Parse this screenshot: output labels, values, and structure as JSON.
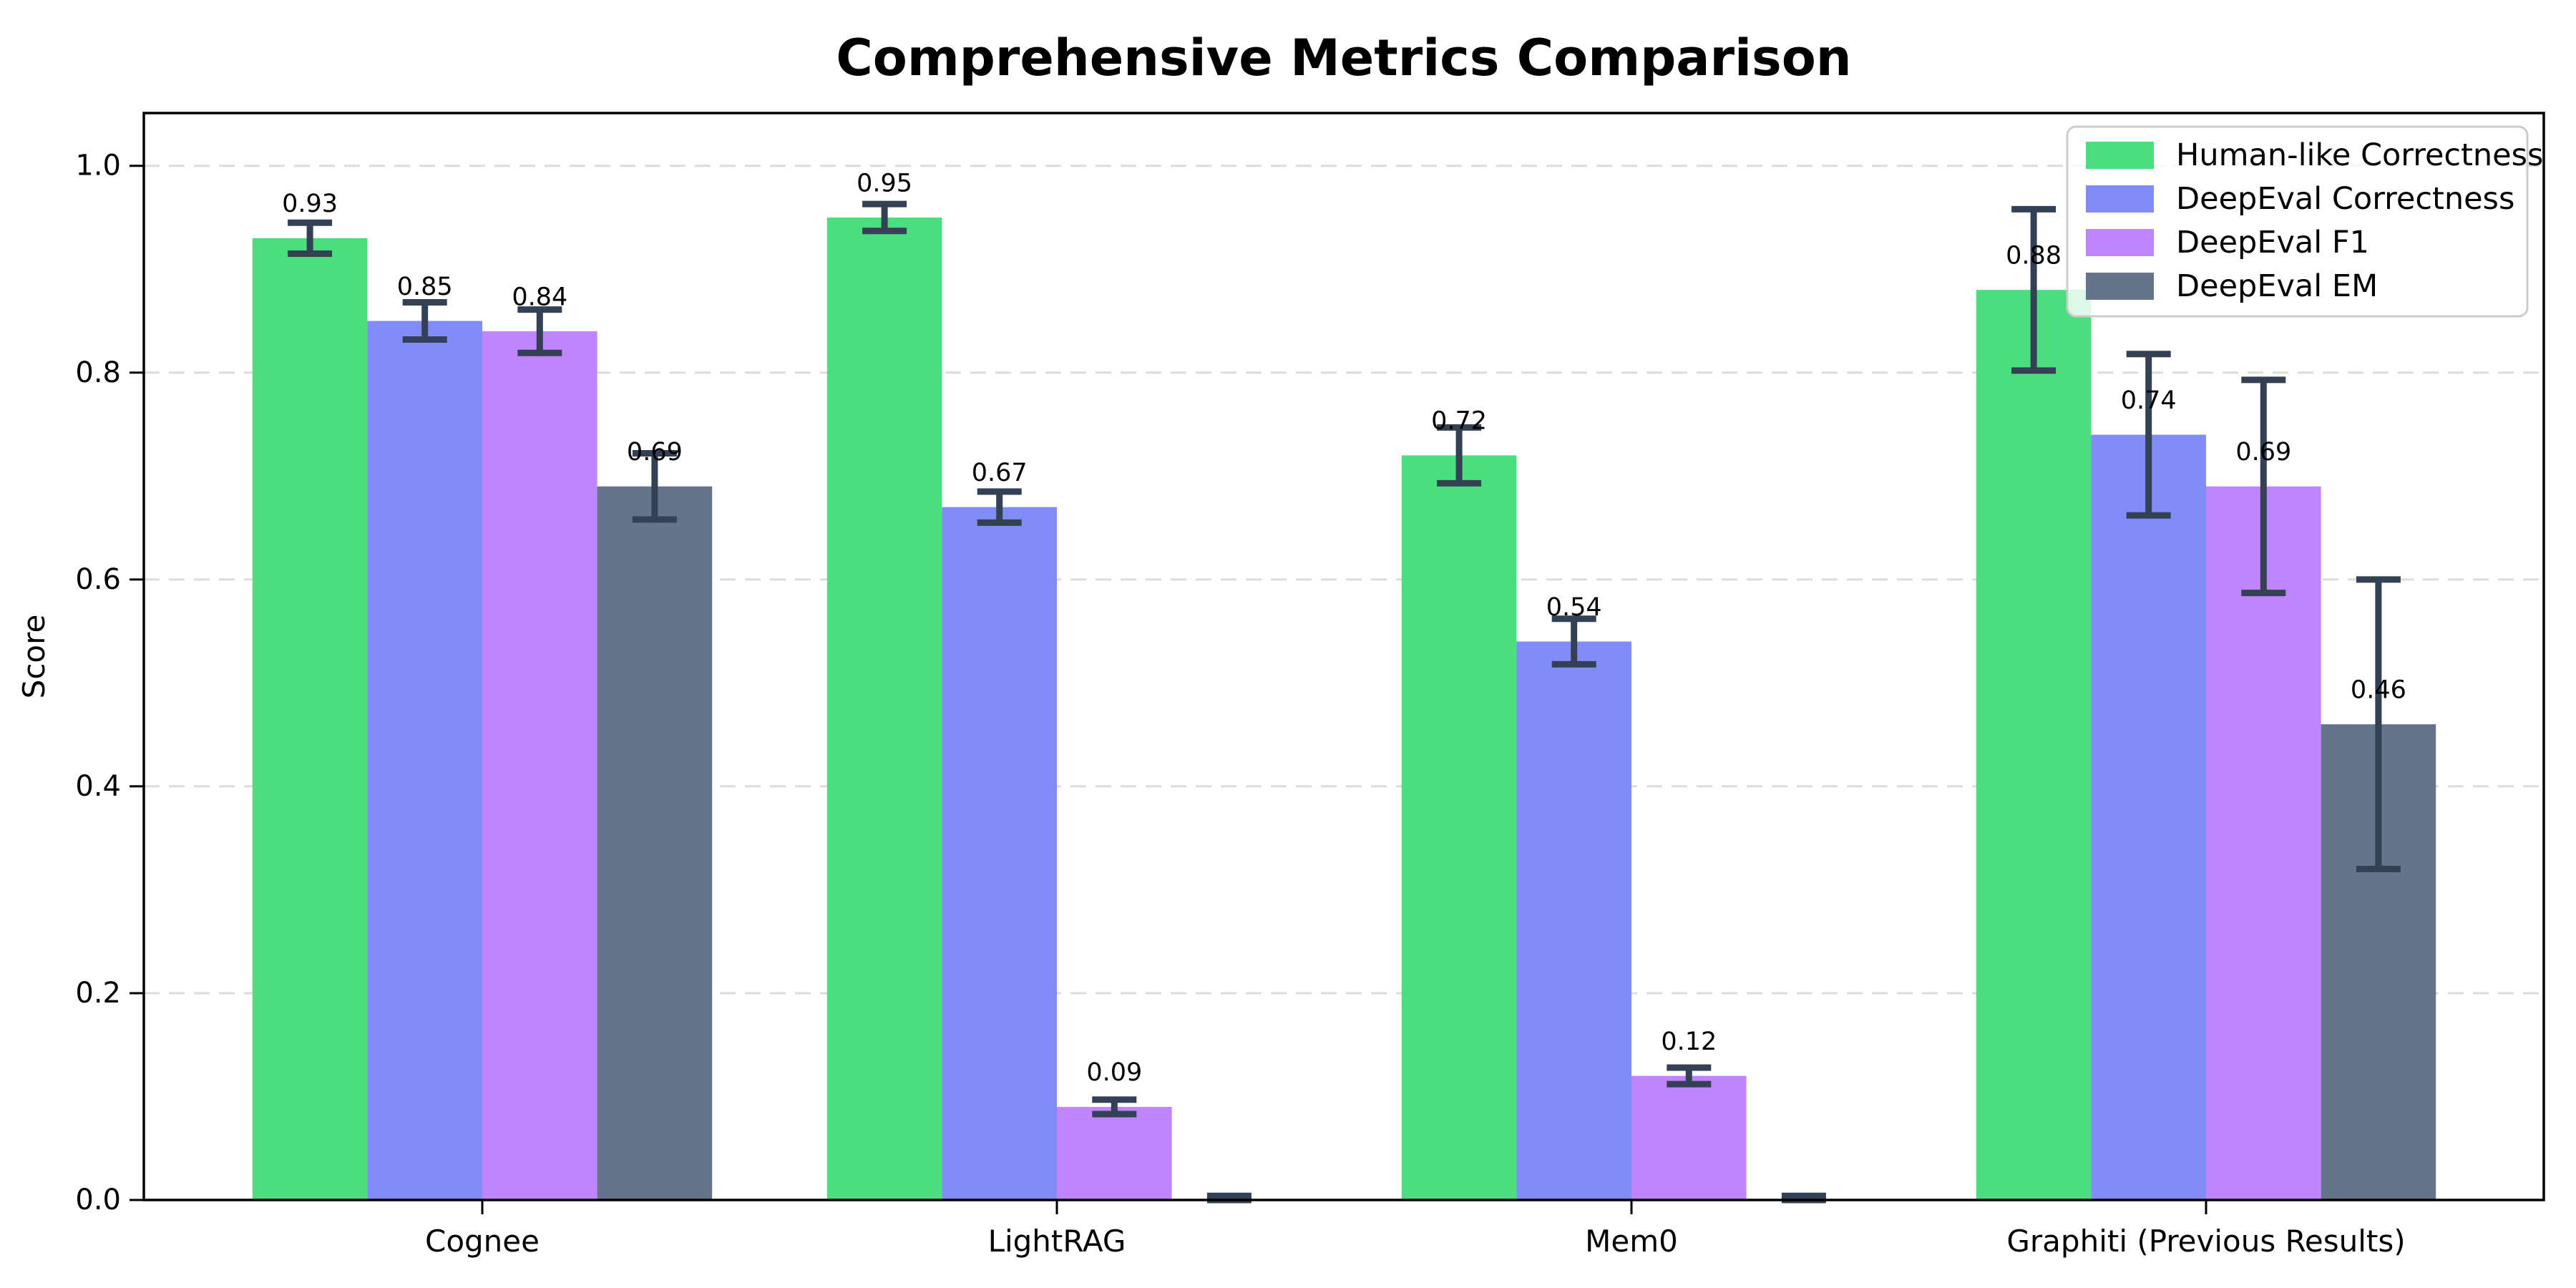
{
  "chart_data": {
    "type": "bar",
    "title": "Comprehensive Metrics Comparison",
    "ylabel": "Score",
    "xlabel": "",
    "categories": [
      "Cognee",
      "LightRAG",
      "Mem0",
      "Graphiti (Previous Results)"
    ],
    "series": [
      {
        "name": "Human-like Correctness",
        "color": "#4ade80",
        "values": [
          0.93,
          0.95,
          0.72,
          0.88
        ],
        "errors": [
          0.015,
          0.013,
          0.027,
          0.078
        ]
      },
      {
        "name": "DeepEval Correctness",
        "color": "#818cf8",
        "values": [
          0.85,
          0.67,
          0.54,
          0.74
        ],
        "errors": [
          0.018,
          0.015,
          0.022,
          0.078
        ]
      },
      {
        "name": "DeepEval F1",
        "color": "#c084fc",
        "values": [
          0.84,
          0.09,
          0.12,
          0.69
        ],
        "errors": [
          0.021,
          0.007,
          0.008,
          0.103
        ]
      },
      {
        "name": "DeepEval EM",
        "color": "#64748b",
        "values": [
          0.69,
          0.0,
          0.0,
          0.46
        ],
        "errors": [
          0.032,
          0.004,
          0.004,
          0.14
        ]
      }
    ],
    "value_labels": [
      [
        "0.93",
        "0.95",
        "0.72",
        "0.88"
      ],
      [
        "0.85",
        "0.67",
        "0.54",
        "0.74"
      ],
      [
        "0.84",
        "0.09",
        "0.12",
        "0.69"
      ],
      [
        "0.69",
        null,
        null,
        "0.46"
      ]
    ],
    "yticks": [
      0.0,
      0.2,
      0.4,
      0.6,
      0.8,
      1.0
    ],
    "ytick_labels": [
      "0.0",
      "0.2",
      "0.4",
      "0.6",
      "0.8",
      "1.0"
    ],
    "ylim": [
      0,
      1.05
    ],
    "grid": {
      "axis": "y",
      "style": "dashed",
      "color": "#dcdcdc"
    },
    "legend": {
      "position": "upper-right"
    },
    "colors": {
      "errorbar": "#344054",
      "spine": "#000000",
      "text": "#000000",
      "background": "#ffffff",
      "legend_border": "#cccccc"
    }
  }
}
